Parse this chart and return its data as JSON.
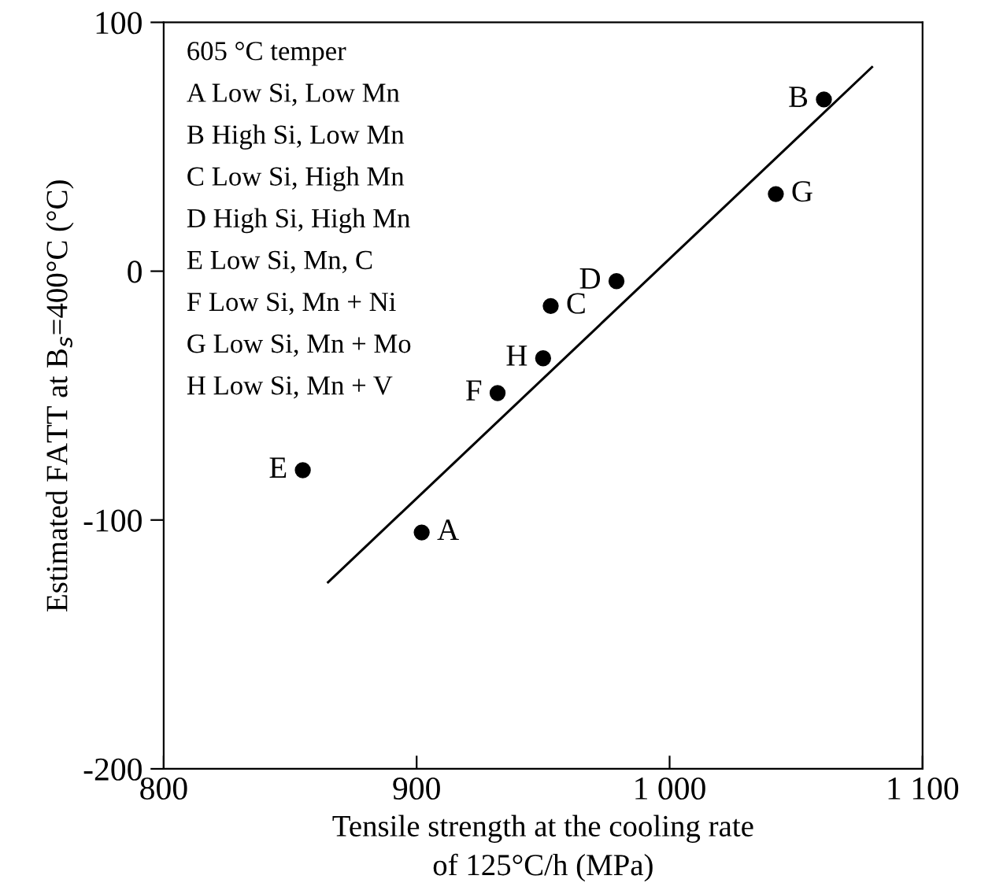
{
  "chart_data": {
    "type": "scatter",
    "xlabel": "Tensile strength at the cooling rate\nof 125°C/h (MPa)",
    "ylabel": "Estimated FATT at B$_{s}$=400°C (°C)",
    "series": [
      {
        "color": "#000000",
        "marker": "circle",
        "x": [
          902,
          1061,
          953,
          979,
          855,
          932,
          1042,
          950
        ],
        "values": [
          -105,
          69,
          -14,
          -4,
          -80,
          -49,
          31,
          -35
        ]
      },
      {
        "type": "line",
        "color": "#000000",
        "marker": "none",
        "line_style": "solid",
        "x": [
          865,
          1080
        ],
        "values": [
          -125,
          82
        ]
      }
    ],
    "annotations": [
      "605 °C temper",
      "A Low Si, Low Mn",
      "B High Si, Low Mn",
      "C Low Si, High Mn",
      "D High Si, High Mn",
      "E Low Si, Mn, C",
      "F Low Si, Mn + Ni",
      "G Low Si, Mn + Mo",
      "H Low Si, Mn + V",
      {
        "text": "A",
        "x": 902,
        "y": -105
      },
      {
        "text": "B",
        "x": 1061,
        "y": 69
      },
      {
        "text": "C",
        "x": 953,
        "y": -14
      },
      {
        "text": "D",
        "x": 979,
        "y": -4
      },
      {
        "text": "E",
        "x": 855,
        "y": -80
      },
      {
        "text": "F",
        "x": 932,
        "y": -49
      },
      {
        "text": "G",
        "x": 1042,
        "y": 31
      },
      {
        "text": "H",
        "x": 950,
        "y": -35
      }
    ],
    "xlim": [
      800,
      1100
    ],
    "xticks": [
      800,
      900,
      {
        "value": 1000,
        "label": "1 000"
      },
      {
        "value": 1100,
        "label": "1 100"
      }
    ],
    "ylim": [
      -200,
      100
    ],
    "yticks": [
      -200,
      -100,
      0,
      100
    ],
    "grid": false,
    "legend": false
  }
}
